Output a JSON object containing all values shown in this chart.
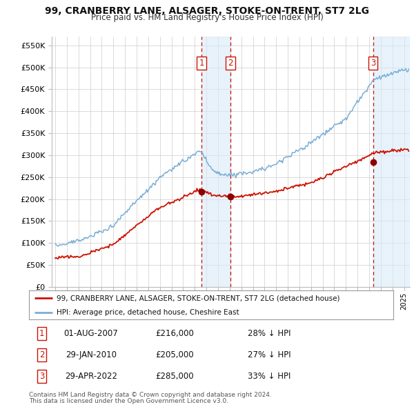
{
  "title": "99, CRANBERRY LANE, ALSAGER, STOKE-ON-TRENT, ST7 2LG",
  "subtitle": "Price paid vs. HM Land Registry's House Price Index (HPI)",
  "yticks": [
    0,
    50000,
    100000,
    150000,
    200000,
    250000,
    300000,
    350000,
    400000,
    450000,
    500000,
    550000
  ],
  "ytick_labels": [
    "£0",
    "£50K",
    "£100K",
    "£150K",
    "£200K",
    "£250K",
    "£300K",
    "£350K",
    "£400K",
    "£450K",
    "£500K",
    "£550K"
  ],
  "xlim_start": 1994.7,
  "xlim_end": 2025.5,
  "ylim_min": 0,
  "ylim_max": 570000,
  "hpi_color": "#7aaed6",
  "price_color": "#cc1100",
  "sale1_date": 2007.58,
  "sale1_price": 216000,
  "sale2_date": 2010.08,
  "sale2_price": 205000,
  "sale3_date": 2022.33,
  "sale3_price": 285000,
  "legend_line1": "99, CRANBERRY LANE, ALSAGER, STOKE-ON-TRENT, ST7 2LG (detached house)",
  "legend_line2": "HPI: Average price, detached house, Cheshire East",
  "footer1": "Contains HM Land Registry data © Crown copyright and database right 2024.",
  "footer2": "This data is licensed under the Open Government Licence v3.0.",
  "bg_color": "#ffffff",
  "grid_color": "#cccccc",
  "sale_box_color": "#cc1100",
  "shade_color": "#daeaf8"
}
